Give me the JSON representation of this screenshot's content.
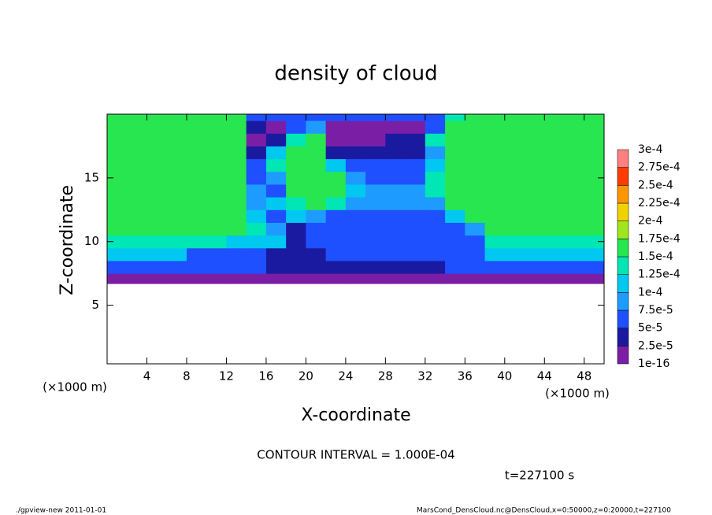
{
  "chart_data": {
    "type": "heatmap",
    "title": "density of cloud",
    "xlabel": "X-coordinate",
    "ylabel": "Z-coordinate",
    "xunit": "(×1000 m)",
    "xunit_right": "(×1000 m)",
    "annotation": "CONTOUR INTERVAL = 1.000E-04",
    "time_label": "t=227100 s",
    "footer_left": "./gpview-new   2011-01-01",
    "footer_right": "MarsCond_DensCloud.nc@DensCloud,x=0:50000,z=0:20000,t=227100",
    "xlim": [
      0,
      50
    ],
    "ylim": [
      0.4,
      20
    ],
    "xticks": [
      4,
      8,
      12,
      16,
      20,
      24,
      28,
      32,
      36,
      40,
      44,
      48
    ],
    "yticks": [
      5,
      10,
      15
    ],
    "xedges": [
      0,
      2,
      4,
      6,
      8,
      10,
      12,
      14,
      16,
      18,
      20,
      22,
      24,
      26,
      28,
      30,
      32,
      34,
      36,
      38,
      40,
      42,
      44,
      46,
      48,
      50
    ],
    "yedges": [
      6.7,
      7.5,
      8.5,
      9.5,
      10.5,
      11.5,
      12.5,
      13.5,
      14.5,
      15.5,
      16.5,
      17.5,
      18.5,
      19.5,
      20
    ],
    "values": [
      [
        1e-05,
        1e-05,
        1e-05,
        1e-05,
        1e-05,
        1e-05,
        1e-05,
        1e-05,
        1e-05,
        1e-05,
        1e-05,
        1e-05,
        1e-05,
        1e-05,
        1e-05,
        1e-05,
        1e-05,
        1e-05,
        1e-05,
        1e-05,
        1e-05,
        1e-05,
        1e-05,
        1e-05,
        1e-05
      ],
      [
        6e-05,
        6e-05,
        6e-05,
        6e-05,
        6e-05,
        6e-05,
        6e-05,
        6e-05,
        3.5e-05,
        3.5e-05,
        3.5e-05,
        3.5e-05,
        3.5e-05,
        3.5e-05,
        3.5e-05,
        3.5e-05,
        3.5e-05,
        6e-05,
        6e-05,
        6e-05,
        6e-05,
        6e-05,
        6e-05,
        6e-05,
        6e-05
      ],
      [
        0.00011,
        0.00011,
        0.00011,
        0.00011,
        6e-05,
        6e-05,
        6e-05,
        6e-05,
        3.5e-05,
        3.5e-05,
        3.5e-05,
        6e-05,
        6e-05,
        6e-05,
        6e-05,
        6e-05,
        6e-05,
        6e-05,
        6e-05,
        0.00011,
        0.00011,
        0.00011,
        0.00011,
        0.00011,
        0.00011
      ],
      [
        0.000135,
        0.000135,
        0.000135,
        0.000135,
        0.000135,
        0.000135,
        0.00011,
        0.00011,
        0.00011,
        3.5e-05,
        6e-05,
        6e-05,
        6e-05,
        6e-05,
        6e-05,
        6e-05,
        6e-05,
        6e-05,
        6e-05,
        0.000135,
        0.000135,
        0.000135,
        0.000135,
        0.000135,
        0.000135
      ],
      [
        0.00015,
        0.00015,
        0.00015,
        0.00015,
        0.00015,
        0.00015,
        0.00015,
        0.000135,
        8.5e-05,
        3.5e-05,
        6e-05,
        6e-05,
        6e-05,
        6e-05,
        6e-05,
        6e-05,
        6e-05,
        6e-05,
        8.5e-05,
        0.00015,
        0.00015,
        0.00015,
        0.00015,
        0.00015,
        0.00015
      ],
      [
        0.000155,
        0.000155,
        0.000155,
        0.000155,
        0.000155,
        0.000155,
        0.000155,
        0.00011,
        6e-05,
        0.00011,
        8.5e-05,
        6e-05,
        6e-05,
        6e-05,
        6e-05,
        6e-05,
        6e-05,
        0.00011,
        0.000155,
        0.000155,
        0.000155,
        0.000155,
        0.000155,
        0.000155,
        0.000155
      ],
      [
        0.000155,
        0.000155,
        0.000155,
        0.000155,
        0.000155,
        0.000155,
        0.000155,
        8.5e-05,
        0.00011,
        0.000135,
        0.000155,
        0.000135,
        8.5e-05,
        8.5e-05,
        8.5e-05,
        8.5e-05,
        8.5e-05,
        0.000155,
        0.000155,
        0.000155,
        0.000155,
        0.000155,
        0.000155,
        0.000155,
        0.000155
      ],
      [
        0.000155,
        0.000155,
        0.000155,
        0.000155,
        0.000155,
        0.000155,
        0.000155,
        8.5e-05,
        6e-05,
        0.000155,
        0.000155,
        0.000155,
        0.00011,
        8.5e-05,
        8.5e-05,
        8.5e-05,
        0.000135,
        0.000155,
        0.000155,
        0.000155,
        0.000155,
        0.000155,
        0.000155,
        0.000155,
        0.000155
      ],
      [
        0.000155,
        0.000155,
        0.000155,
        0.000155,
        0.000155,
        0.000155,
        0.000155,
        6e-05,
        8.5e-05,
        0.000155,
        0.000155,
        0.000155,
        8.5e-05,
        6e-05,
        6e-05,
        6e-05,
        0.000135,
        0.000155,
        0.000155,
        0.000155,
        0.000155,
        0.000155,
        0.000155,
        0.000155,
        0.000155
      ],
      [
        0.000155,
        0.000155,
        0.000155,
        0.000155,
        0.000155,
        0.000155,
        0.000155,
        6e-05,
        0.000135,
        0.000155,
        0.000155,
        0.00011,
        6e-05,
        6e-05,
        6e-05,
        6e-05,
        0.00011,
        0.000155,
        0.000155,
        0.000155,
        0.000155,
        0.000155,
        0.000155,
        0.000155,
        0.000155
      ],
      [
        0.000155,
        0.000155,
        0.000155,
        0.000155,
        0.000155,
        0.000155,
        0.000155,
        3.5e-05,
        0.00011,
        0.000155,
        0.000155,
        3.5e-05,
        3.5e-05,
        3.5e-05,
        3.5e-05,
        3.5e-05,
        8.5e-05,
        0.000155,
        0.000155,
        0.000155,
        0.000155,
        0.000155,
        0.000155,
        0.000155,
        0.000155
      ],
      [
        0.000155,
        0.000155,
        0.000155,
        0.000155,
        0.000155,
        0.000155,
        0.000155,
        1e-05,
        3.5e-05,
        0.000135,
        0.000155,
        1e-05,
        1e-05,
        1e-05,
        3.5e-05,
        3.5e-05,
        0.000135,
        0.000155,
        0.000155,
        0.000155,
        0.000155,
        0.000155,
        0.000155,
        0.000155,
        0.000155
      ],
      [
        0.000155,
        0.000155,
        0.000155,
        0.000155,
        0.000155,
        0.000155,
        0.000155,
        3.5e-05,
        1e-05,
        6e-05,
        8.5e-05,
        1e-05,
        1e-05,
        1e-05,
        1e-05,
        1e-05,
        6e-05,
        0.000155,
        0.000155,
        0.000155,
        0.000155,
        0.000155,
        0.000155,
        0.000155,
        0.000155
      ],
      [
        0.000155,
        0.000155,
        0.000155,
        0.000155,
        0.000155,
        0.000155,
        0.000155,
        6e-05,
        6e-05,
        6e-05,
        6e-05,
        6e-05,
        6e-05,
        6e-05,
        6e-05,
        6e-05,
        6e-05,
        0.000135,
        0.000155,
        0.000155,
        0.000155,
        0.000155,
        0.000155,
        0.000155,
        0.000155
      ]
    ],
    "levels": [
      {
        "value": 1e-16,
        "label": "1e-16"
      },
      {
        "value": 2.5e-05,
        "label": "2.5e-5"
      },
      {
        "value": 5e-05,
        "label": "5e-5"
      },
      {
        "value": 7.5e-05,
        "label": "7.5e-5"
      },
      {
        "value": 0.0001,
        "label": "1e-4"
      },
      {
        "value": 0.000125,
        "label": "1.25e-4"
      },
      {
        "value": 0.00015,
        "label": "1.5e-4"
      },
      {
        "value": 0.000175,
        "label": "1.75e-4"
      },
      {
        "value": 0.0002,
        "label": "2e-4"
      },
      {
        "value": 0.000225,
        "label": "2.25e-4"
      },
      {
        "value": 0.00025,
        "label": "2.5e-4"
      },
      {
        "value": 0.000275,
        "label": "2.75e-4"
      },
      {
        "value": 0.0003,
        "label": "3e-4"
      }
    ],
    "colors": [
      "#7a1ea6",
      "#1a1aa0",
      "#1e50ff",
      "#1e9bff",
      "#00c8f0",
      "#00e6b4",
      "#28e650",
      "#a0e61e",
      "#f0d200",
      "#ff9600",
      "#ff3c00",
      "#ff8080"
    ]
  }
}
